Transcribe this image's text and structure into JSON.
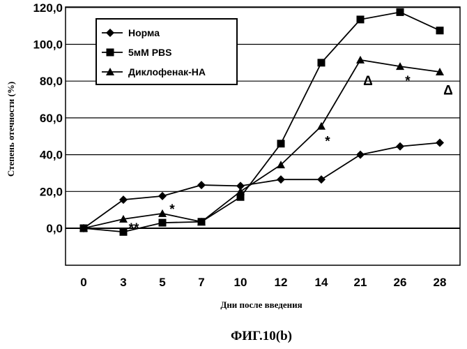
{
  "chart_data": {
    "type": "line",
    "categories": [
      "0",
      "3",
      "5",
      "7",
      "10",
      "12",
      "14",
      "21",
      "26",
      "28"
    ],
    "y_tick_labels": [
      "0,0",
      "20,0",
      "40,0",
      "60,0",
      "80,0",
      "100,0",
      "120,0"
    ],
    "ylim": [
      -20,
      120
    ],
    "xlabel": "Дни после введения",
    "ylabel": "Степень отечности (%)",
    "grid": "horizontal",
    "legend_position": "top-left",
    "series": [
      {
        "name": "Норма",
        "marker": "diamond",
        "values": [
          0,
          15.5,
          17.5,
          23.5,
          23,
          26.5,
          26.5,
          40,
          44.5,
          46.5
        ]
      },
      {
        "name": "5мМ PBS",
        "marker": "square",
        "values": [
          0,
          -2,
          3,
          3.5,
          17,
          46,
          90,
          113.5,
          117.5,
          107.5
        ]
      },
      {
        "name": "Диклофенак-НА",
        "marker": "triangle",
        "values": [
          0,
          5,
          8,
          3.5,
          20,
          34.5,
          55.5,
          91.5,
          88,
          85
        ]
      }
    ],
    "annotations": [
      {
        "text": "**",
        "x": "3",
        "y": 0
      },
      {
        "text": "*",
        "x": "5",
        "y": 8
      },
      {
        "text": "*",
        "x": "14",
        "y": 45
      },
      {
        "text": "Δ",
        "x": "21",
        "y": 80
      },
      {
        "text": "*",
        "x": "26",
        "y": 80
      },
      {
        "text": "Δ",
        "x": "28",
        "y": 75
      }
    ]
  },
  "caption": "ФИГ.10(b)"
}
